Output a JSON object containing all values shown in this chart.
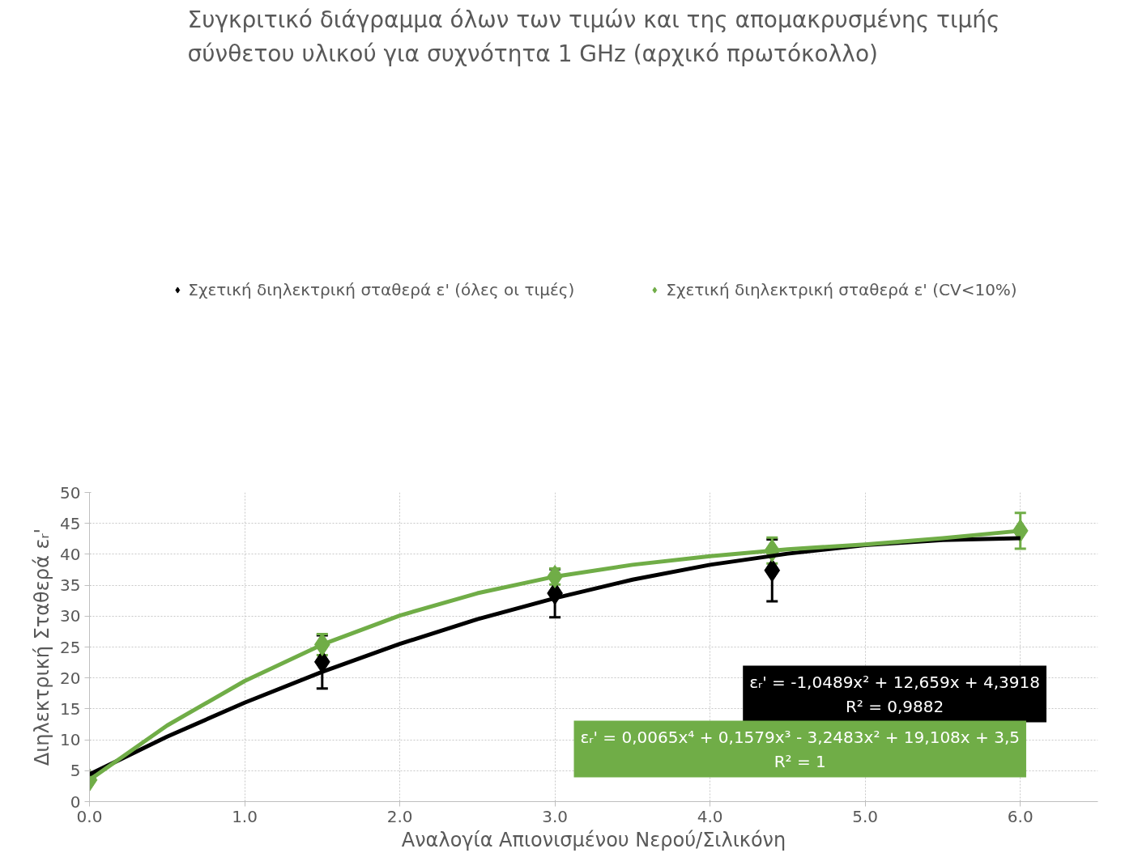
{
  "chart_data": {
    "type": "scatter",
    "title": "Συγκριτικό διάγραμμα όλων των τιμών και της απομακρυσμένης τιμής\nσύνθετου υλικού για συχνότητα 1 GHz (αρχικό πρωτόκολλο)",
    "xlabel": "Αναλογία Απιονισμένου Νερού/Σιλικόνη",
    "ylabel": "Διηλεκτρική Σταθερά εᵣ'",
    "x": [
      0,
      1.5,
      3.0,
      4.4,
      6.0
    ],
    "series": [
      {
        "name": "Σχετική διηλεκτρική σταθερά ε' (όλες οι τιμές)",
        "color": "#000000",
        "values": [
          null,
          22.6,
          33.7,
          37.4,
          null
        ],
        "errors": [
          null,
          4.3,
          3.9,
          5.0,
          null
        ]
      },
      {
        "name": "Σχετική διηλεκτρική σταθερά ε' (CV<10%)",
        "color": "#70ad47",
        "values": [
          3.5,
          25.4,
          36.4,
          40.6,
          43.8
        ],
        "errors": [
          null,
          1.7,
          1.3,
          2.1,
          2.9
        ]
      },
      {
        "type": "line",
        "marker": "none",
        "color": "#000000",
        "x": [
          0,
          0.5,
          1,
          1.5,
          2,
          2.5,
          3,
          3.5,
          4,
          4.5,
          5,
          5.5,
          6
        ],
        "values": [
          4.4,
          10.5,
          16.0,
          21.0,
          25.5,
          29.5,
          32.9,
          35.9,
          38.3,
          40.1,
          41.5,
          42.3,
          42.6
        ]
      },
      {
        "type": "line",
        "marker": "none",
        "color": "#70ad47",
        "x": [
          0,
          0.5,
          1,
          1.5,
          2,
          2.5,
          3,
          3.5,
          4,
          4.5,
          5,
          5.5,
          6
        ],
        "values": [
          3.5,
          12.3,
          19.5,
          25.4,
          30.1,
          33.7,
          36.4,
          38.3,
          39.7,
          40.8,
          41.6,
          42.6,
          43.8
        ]
      }
    ],
    "annotations": [
      "εᵣ' = -1,0489x² + 12,659x + 4,3918\nR² = 0,9882",
      "εᵣ' = 0,0065x⁴ + 0,1579x³ - 3,2483x² + 19,108x + 3,5\nR² = 1"
    ],
    "xlim": [
      0,
      6.5
    ],
    "ylim": [
      0,
      50
    ],
    "xticks": [
      {
        "value": 0,
        "label": "0.0"
      },
      {
        "value": 1,
        "label": "1.0"
      },
      {
        "value": 2,
        "label": "2.0"
      },
      {
        "value": 3,
        "label": "3.0"
      },
      {
        "value": 4,
        "label": "4.0"
      },
      {
        "value": 5,
        "label": "5.0"
      },
      {
        "value": 6,
        "label": "6.0"
      }
    ],
    "yticks": [
      0,
      5,
      10,
      15,
      20,
      25,
      30,
      35,
      40,
      45,
      50
    ],
    "grid": true,
    "legend": "top",
    "marker": "diamond"
  }
}
